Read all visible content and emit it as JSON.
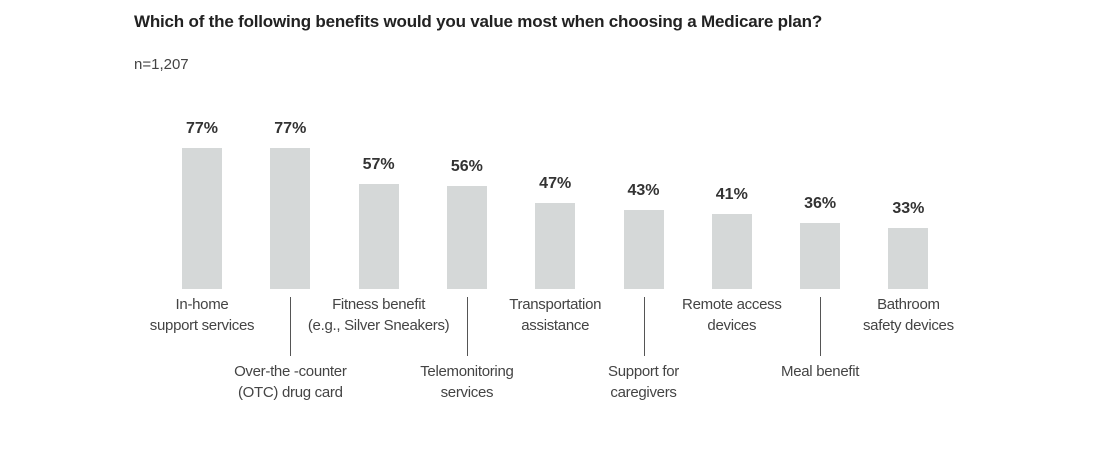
{
  "chart_data": {
    "type": "bar",
    "title": "Which of the following benefits would you value most when choosing a Medicare plan?",
    "subtitle": "n=1,207",
    "categories": [
      [
        "In-home",
        "support services"
      ],
      [
        "Over-the -counter",
        "(OTC) drug card"
      ],
      [
        "Fitness benefit",
        "(e.g., Silver Sneakers)"
      ],
      [
        "Telemonitoring",
        "services"
      ],
      [
        "Transportation",
        "assistance"
      ],
      [
        "Support for",
        "caregivers"
      ],
      [
        "Remote access",
        "devices"
      ],
      [
        "Meal benefit"
      ],
      [
        "Bathroom",
        "safety devices"
      ]
    ],
    "values": [
      77,
      77,
      57,
      56,
      47,
      43,
      41,
      36,
      33
    ],
    "value_labels": [
      "77%",
      "77%",
      "57%",
      "56%",
      "47%",
      "43%",
      "41%",
      "36%",
      "33%"
    ],
    "ylim": [
      0,
      100
    ],
    "grid": false,
    "bar_color": "#d5d8d8"
  }
}
